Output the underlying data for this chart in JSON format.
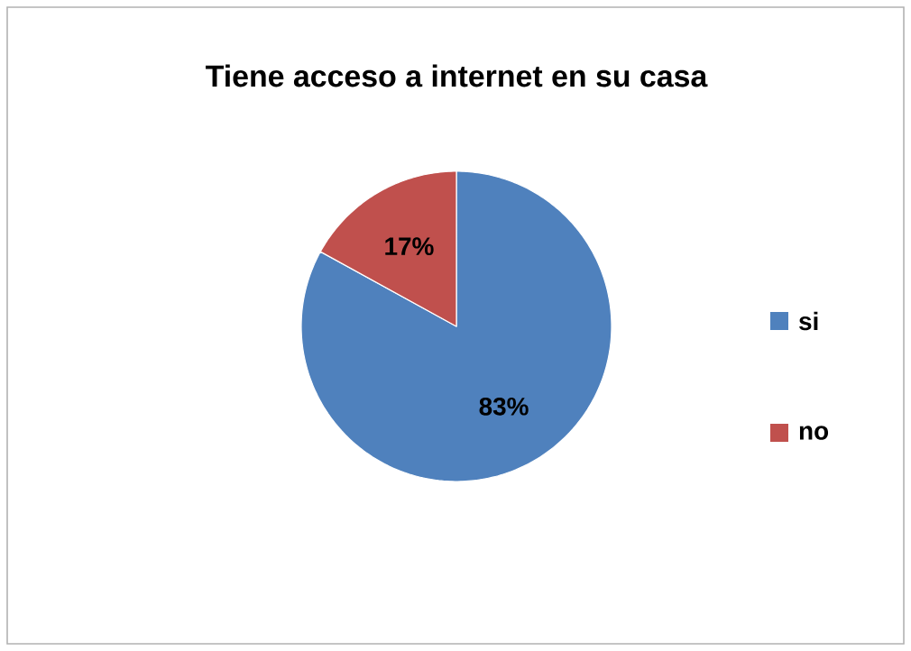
{
  "chart_data": {
    "type": "pie",
    "title": "Tiene acceso a internet en su casa",
    "categories": [
      "si",
      "no"
    ],
    "values": [
      83,
      17
    ],
    "colors": [
      "#4f81bd",
      "#c0504d"
    ],
    "value_labels": [
      "83%",
      "17%"
    ],
    "legend": "right"
  }
}
